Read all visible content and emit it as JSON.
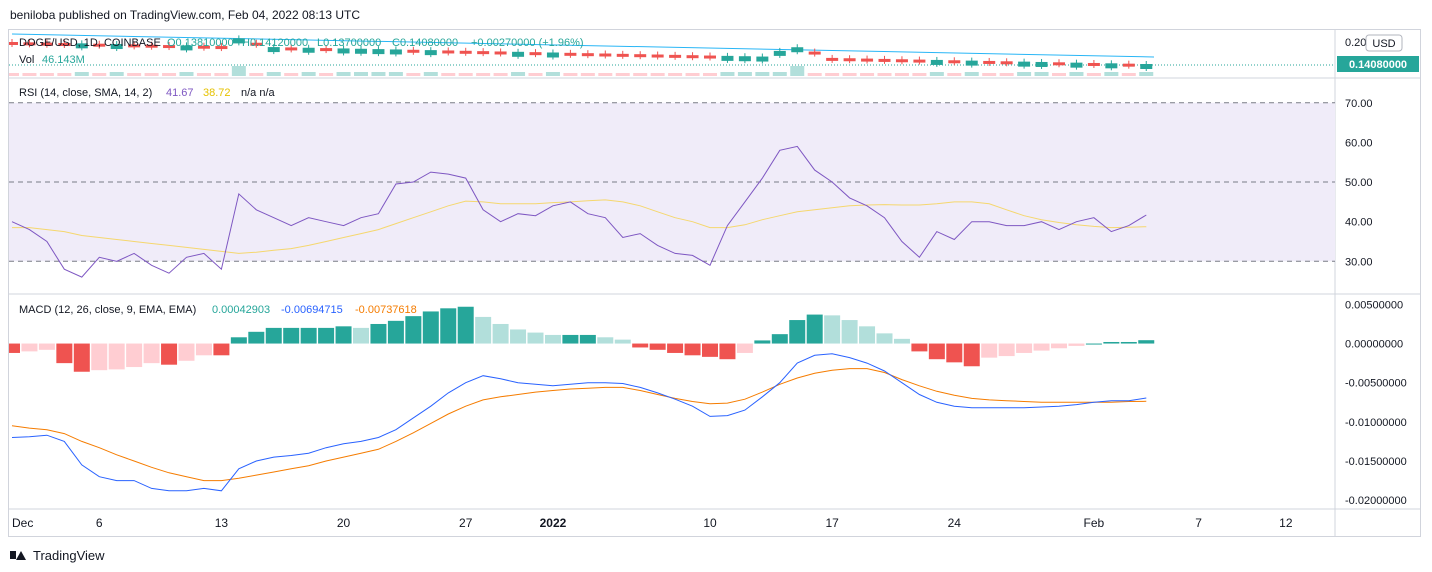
{
  "header": {
    "published_text": "beniloba published on TradingView.com, Feb 04, 2022 08:13 UTC"
  },
  "footer": {
    "brand": "TradingView"
  },
  "colors": {
    "up": "#26a69a",
    "down": "#ef5350",
    "up_light": "#b2dfdb",
    "down_light": "#ffcdd2",
    "rsi": "#7e57c2",
    "rsi_ma": "#f5d76e",
    "macd": "#2962ff",
    "signal": "#f57c00",
    "rsi_band": "#f0ecf9",
    "trendline": "#29b6f6"
  },
  "chart_data": [
    {
      "type": "candlestick",
      "pane": "price",
      "legend": {
        "symbol": "DOGE/USD, 1D, COINBASE",
        "open": "O0.13810000",
        "high": "H0.14120000",
        "low": "L0.13700000",
        "close": "C0.14080000",
        "change": "+0.00270000 (+1.96%)",
        "volume_label": "Vol",
        "volume_value": "46.143M"
      },
      "last_price_label": "0.14080000",
      "axis_label": "0.20",
      "currency": "USD",
      "trend": "downtrend",
      "candles": [
        {
          "date": "Dec 1",
          "dir": "down"
        },
        {
          "date": "Dec 2",
          "dir": "down"
        },
        {
          "date": "Dec 3",
          "dir": "down"
        },
        {
          "date": "Dec 4",
          "dir": "down"
        },
        {
          "date": "Dec 5",
          "dir": "up"
        },
        {
          "date": "Dec 6",
          "dir": "down"
        },
        {
          "date": "Dec 7",
          "dir": "up"
        },
        {
          "date": "Dec 8",
          "dir": "down"
        },
        {
          "date": "Dec 9",
          "dir": "down"
        },
        {
          "date": "Dec 10",
          "dir": "down"
        },
        {
          "date": "Dec 11",
          "dir": "up"
        },
        {
          "date": "Dec 12",
          "dir": "down"
        },
        {
          "date": "Dec 13",
          "dir": "down"
        },
        {
          "date": "Dec 14",
          "dir": "up"
        },
        {
          "date": "Dec 15",
          "dir": "down"
        },
        {
          "date": "Dec 16",
          "dir": "up"
        },
        {
          "date": "Dec 17",
          "dir": "down"
        },
        {
          "date": "Dec 18",
          "dir": "up"
        },
        {
          "date": "Dec 19",
          "dir": "down"
        },
        {
          "date": "Dec 20",
          "dir": "up"
        },
        {
          "date": "Dec 21",
          "dir": "up"
        },
        {
          "date": "Dec 22",
          "dir": "up"
        },
        {
          "date": "Dec 23",
          "dir": "up"
        },
        {
          "date": "Dec 24",
          "dir": "down"
        },
        {
          "date": "Dec 25",
          "dir": "up"
        },
        {
          "date": "Dec 26",
          "dir": "down"
        },
        {
          "date": "Dec 27",
          "dir": "down"
        },
        {
          "date": "Dec 28",
          "dir": "down"
        },
        {
          "date": "Dec 29",
          "dir": "down"
        },
        {
          "date": "Dec 30",
          "dir": "up"
        },
        {
          "date": "Dec 31",
          "dir": "down"
        },
        {
          "date": "Jan 1",
          "dir": "up"
        },
        {
          "date": "Jan 2",
          "dir": "down"
        },
        {
          "date": "Jan 3",
          "dir": "down"
        },
        {
          "date": "Jan 4",
          "dir": "down"
        },
        {
          "date": "Jan 5",
          "dir": "down"
        },
        {
          "date": "Jan 6",
          "dir": "down"
        },
        {
          "date": "Jan 7",
          "dir": "down"
        },
        {
          "date": "Jan 8",
          "dir": "down"
        },
        {
          "date": "Jan 9",
          "dir": "down"
        },
        {
          "date": "Jan 10",
          "dir": "down"
        },
        {
          "date": "Jan 11",
          "dir": "up"
        },
        {
          "date": "Jan 12",
          "dir": "up"
        },
        {
          "date": "Jan 13",
          "dir": "up"
        },
        {
          "date": "Jan 14",
          "dir": "up"
        },
        {
          "date": "Jan 15",
          "dir": "up"
        },
        {
          "date": "Jan 16",
          "dir": "down"
        },
        {
          "date": "Jan 17",
          "dir": "down"
        },
        {
          "date": "Jan 18",
          "dir": "down"
        },
        {
          "date": "Jan 19",
          "dir": "down"
        },
        {
          "date": "Jan 20",
          "dir": "down"
        },
        {
          "date": "Jan 21",
          "dir": "down"
        },
        {
          "date": "Jan 22",
          "dir": "down"
        },
        {
          "date": "Jan 23",
          "dir": "up"
        },
        {
          "date": "Jan 24",
          "dir": "down"
        },
        {
          "date": "Jan 25",
          "dir": "up"
        },
        {
          "date": "Jan 26",
          "dir": "down"
        },
        {
          "date": "Jan 27",
          "dir": "down"
        },
        {
          "date": "Jan 28",
          "dir": "up"
        },
        {
          "date": "Jan 29",
          "dir": "up"
        },
        {
          "date": "Jan 30",
          "dir": "down"
        },
        {
          "date": "Jan 31",
          "dir": "up"
        },
        {
          "date": "Feb 1",
          "dir": "down"
        },
        {
          "date": "Feb 2",
          "dir": "up"
        },
        {
          "date": "Feb 3",
          "dir": "down"
        },
        {
          "date": "Feb 4",
          "dir": "up"
        }
      ]
    },
    {
      "type": "line",
      "pane": "rsi",
      "legend": {
        "label": "RSI (14, close, SMA, 14, 2)",
        "rsi": "41.67",
        "ma": "38.72",
        "extra": "n/a  n/a"
      },
      "y_ticks": [
        "70.00",
        "60.00",
        "50.00",
        "40.00",
        "30.00"
      ],
      "ylim": [
        22,
        76
      ],
      "bands": {
        "upper": 70,
        "middle": 50,
        "lower": 30
      },
      "series": [
        {
          "name": "RSI",
          "values": [
            40,
            38,
            35,
            28,
            26,
            31,
            30,
            32,
            29,
            27,
            31,
            32,
            28,
            47,
            43,
            41,
            39,
            41,
            40,
            39,
            41,
            42,
            49.5,
            50,
            52.5,
            52,
            51,
            43,
            40,
            42,
            41.5,
            44,
            45,
            42,
            41,
            36,
            37,
            34,
            32,
            31.5,
            29,
            39,
            45,
            51,
            58,
            59,
            53,
            50,
            46,
            44,
            41,
            35,
            31,
            37.5,
            35.5,
            40,
            40,
            39,
            39,
            40,
            38,
            40,
            41,
            37.5,
            39,
            41.67
          ]
        },
        {
          "name": "RSI MA",
          "values": [
            38.5,
            38.5,
            38,
            37.5,
            36.5,
            36,
            35.5,
            35,
            34.5,
            34,
            33.5,
            33,
            32.5,
            32,
            32.3,
            32.8,
            33.2,
            34,
            35,
            36,
            37,
            38,
            39.5,
            41,
            42.5,
            44,
            45.2,
            45,
            44.5,
            44.5,
            44.5,
            44.8,
            45,
            45.3,
            45.5,
            45,
            44,
            42.5,
            41,
            40,
            38.5,
            38.5,
            39.2,
            40.5,
            41.5,
            42.5,
            43,
            43.5,
            44,
            44.2,
            44.3,
            44.2,
            44.2,
            44.5,
            45,
            45,
            44.5,
            43,
            41.5,
            40.5,
            39.8,
            39.2,
            38.8,
            38.5,
            38.6,
            38.72
          ]
        }
      ]
    },
    {
      "type": "bar+line",
      "pane": "macd",
      "legend": {
        "label": "MACD (12, 26, close, 9, EMA, EMA)",
        "histogram": "0.00042903",
        "macd": "-0.00694715",
        "signal": "-0.00737618"
      },
      "y_ticks": [
        "0.00500000",
        "0.00000000",
        "-0.00500000",
        "-0.01000000",
        "-0.01500000",
        "-0.02000000"
      ],
      "ylim": [
        -0.021,
        0.0062
      ],
      "histogram": [
        -0.0012,
        -0.001,
        -0.0008,
        -0.0025,
        -0.0036,
        -0.0034,
        -0.0033,
        -0.003,
        -0.0025,
        -0.0027,
        -0.0022,
        -0.0015,
        -0.0015,
        0.0008,
        0.0015,
        0.002,
        0.002,
        0.002,
        0.002,
        0.0022,
        0.002,
        0.0025,
        0.0029,
        0.0035,
        0.0041,
        0.0045,
        0.0047,
        0.0034,
        0.0025,
        0.0018,
        0.0014,
        0.0011,
        0.0011,
        0.0011,
        0.0008,
        0.0005,
        -0.0005,
        -0.0008,
        -0.0012,
        -0.0015,
        -0.0017,
        -0.002,
        -0.0012,
        0.0004,
        0.0012,
        0.003,
        0.0037,
        0.0036,
        0.003,
        0.0022,
        0.0013,
        0.0006,
        -0.001,
        -0.002,
        -0.0024,
        -0.0029,
        -0.0018,
        -0.0016,
        -0.0012,
        -0.0009,
        -0.0006,
        -0.0003,
        0.0,
        0.0002,
        0.0002,
        0.00042903
      ],
      "series": [
        {
          "name": "MACD",
          "values": [
            -0.012,
            -0.0119,
            -0.0117,
            -0.0125,
            -0.0155,
            -0.017,
            -0.0175,
            -0.0175,
            -0.0185,
            -0.0188,
            -0.0188,
            -0.0185,
            -0.0188,
            -0.016,
            -0.015,
            -0.0145,
            -0.0143,
            -0.014,
            -0.0133,
            -0.0128,
            -0.0125,
            -0.012,
            -0.011,
            -0.0095,
            -0.008,
            -0.0063,
            -0.005,
            -0.0041,
            -0.0045,
            -0.005,
            -0.0052,
            -0.0054,
            -0.0052,
            -0.005,
            -0.005,
            -0.0051,
            -0.0056,
            -0.0063,
            -0.0071,
            -0.008,
            -0.0093,
            -0.0092,
            -0.0085,
            -0.0068,
            -0.005,
            -0.0025,
            -0.0015,
            -0.0013,
            -0.0018,
            -0.0025,
            -0.0035,
            -0.005,
            -0.0065,
            -0.0075,
            -0.008,
            -0.0082,
            -0.0082,
            -0.0082,
            -0.0082,
            -0.0081,
            -0.008,
            -0.0078,
            -0.0075,
            -0.0073,
            -0.0073,
            -0.00694715
          ]
        },
        {
          "name": "Signal",
          "values": [
            -0.0105,
            -0.0108,
            -0.011,
            -0.0115,
            -0.0125,
            -0.0133,
            -0.0142,
            -0.015,
            -0.0158,
            -0.0165,
            -0.017,
            -0.0175,
            -0.0175,
            -0.0172,
            -0.0168,
            -0.0164,
            -0.016,
            -0.0156,
            -0.015,
            -0.0145,
            -0.014,
            -0.0135,
            -0.0125,
            -0.0114,
            -0.0102,
            -0.009,
            -0.008,
            -0.0072,
            -0.0068,
            -0.0065,
            -0.0062,
            -0.006,
            -0.0058,
            -0.0057,
            -0.0056,
            -0.0056,
            -0.006,
            -0.0065,
            -0.007,
            -0.0074,
            -0.0077,
            -0.0076,
            -0.0071,
            -0.0062,
            -0.0052,
            -0.0044,
            -0.0038,
            -0.0034,
            -0.0032,
            -0.0032,
            -0.0037,
            -0.0046,
            -0.0054,
            -0.0061,
            -0.0066,
            -0.007,
            -0.0072,
            -0.0073,
            -0.0074,
            -0.0075,
            -0.0075,
            -0.0075,
            -0.0075,
            -0.0075,
            -0.0074,
            -0.00737618
          ]
        }
      ]
    }
  ],
  "x_axis": {
    "labels": [
      {
        "text": "Dec",
        "day": 0
      },
      {
        "text": "6",
        "day": 5
      },
      {
        "text": "13",
        "day": 12
      },
      {
        "text": "20",
        "day": 19
      },
      {
        "text": "27",
        "day": 26
      },
      {
        "text": "2022",
        "day": 31,
        "bold": true
      },
      {
        "text": "10",
        "day": 40
      },
      {
        "text": "17",
        "day": 47
      },
      {
        "text": "24",
        "day": 54
      },
      {
        "text": "Feb",
        "day": 62
      },
      {
        "text": "7",
        "day": 68
      },
      {
        "text": "12",
        "day": 73
      }
    ]
  }
}
